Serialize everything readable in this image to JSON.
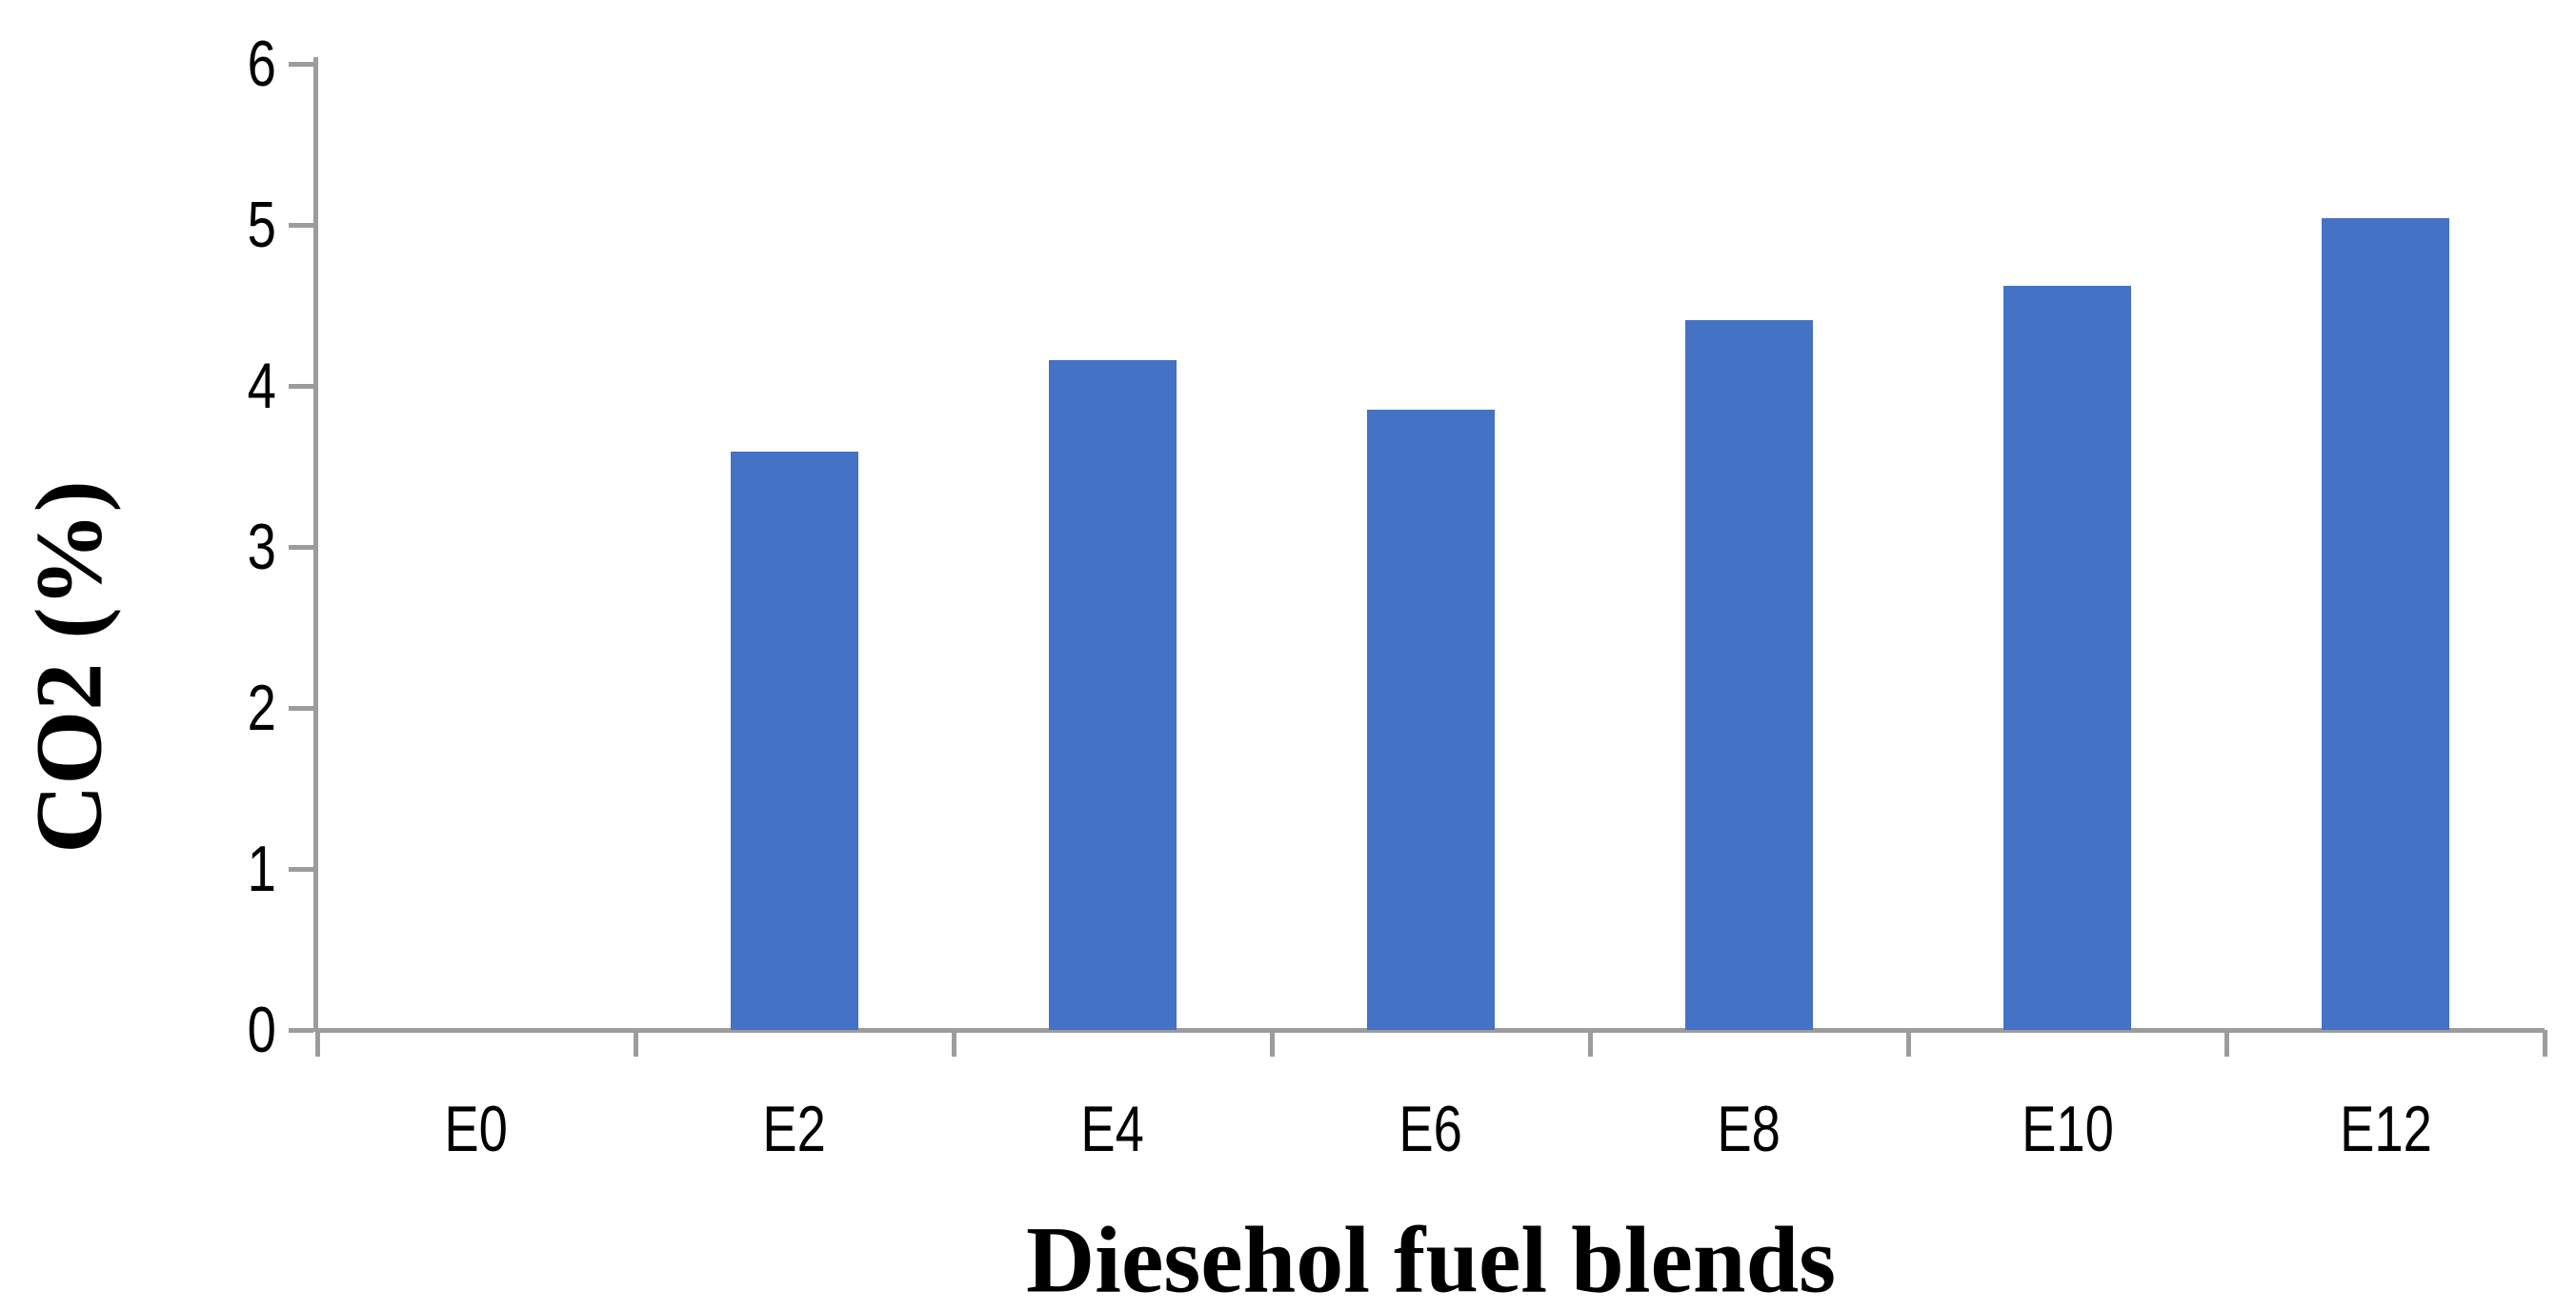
{
  "chart_data": {
    "type": "bar",
    "title": "",
    "xlabel": "Diesehol fuel blends",
    "ylabel": "CO2 (%)",
    "categories": [
      "E0",
      "E2",
      "E4",
      "E6",
      "E8",
      "E10",
      "E12"
    ],
    "values": [
      0,
      3.59,
      4.16,
      3.85,
      4.41,
      4.62,
      5.04
    ],
    "ylim": [
      0,
      6
    ],
    "yticks": [
      0,
      1,
      2,
      3,
      4,
      5,
      6
    ],
    "grid": false,
    "legend": "none",
    "bar_color": "#4472C4",
    "axis_color": "#9C9C9C",
    "text_color": "#000000"
  }
}
